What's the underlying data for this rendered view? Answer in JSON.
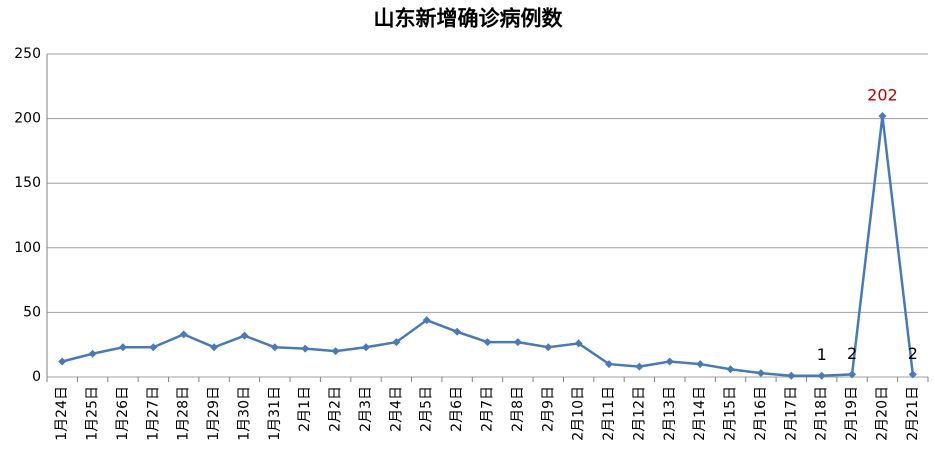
{
  "chart_data": {
    "type": "line",
    "title": "山东新增确诊病例数",
    "categories": [
      "1月24日",
      "1月25日",
      "1月26日",
      "1月27日",
      "1月28日",
      "1月29日",
      "1月30日",
      "1月31日",
      "2月1日",
      "2月2日",
      "2月3日",
      "2月4日",
      "2月5日",
      "2月6日",
      "2月7日",
      "2月8日",
      "2月9日",
      "2月10日",
      "2月11日",
      "2月12日",
      "2月13日",
      "2月14日",
      "2月15日",
      "2月16日",
      "2月17日",
      "2月18日",
      "2月19日",
      "2月20日",
      "2月21日"
    ],
    "values": [
      12,
      18,
      23,
      23,
      33,
      23,
      32,
      23,
      22,
      20,
      23,
      27,
      44,
      35,
      27,
      27,
      23,
      26,
      10,
      8,
      12,
      10,
      6,
      3,
      1,
      1,
      2,
      202,
      2
    ],
    "value_labels": [
      null,
      null,
      null,
      null,
      null,
      null,
      null,
      null,
      null,
      null,
      null,
      null,
      null,
      null,
      null,
      null,
      null,
      null,
      null,
      null,
      null,
      null,
      null,
      null,
      null,
      "1",
      "2",
      "202",
      "2"
    ],
    "color": "#4a7ab5",
    "label_color": "#000000",
    "peak_label_color": "#c00000",
    "ylim": [
      0,
      250
    ],
    "yticks": [
      0,
      50,
      100,
      150,
      200,
      250
    ],
    "grid": true
  }
}
